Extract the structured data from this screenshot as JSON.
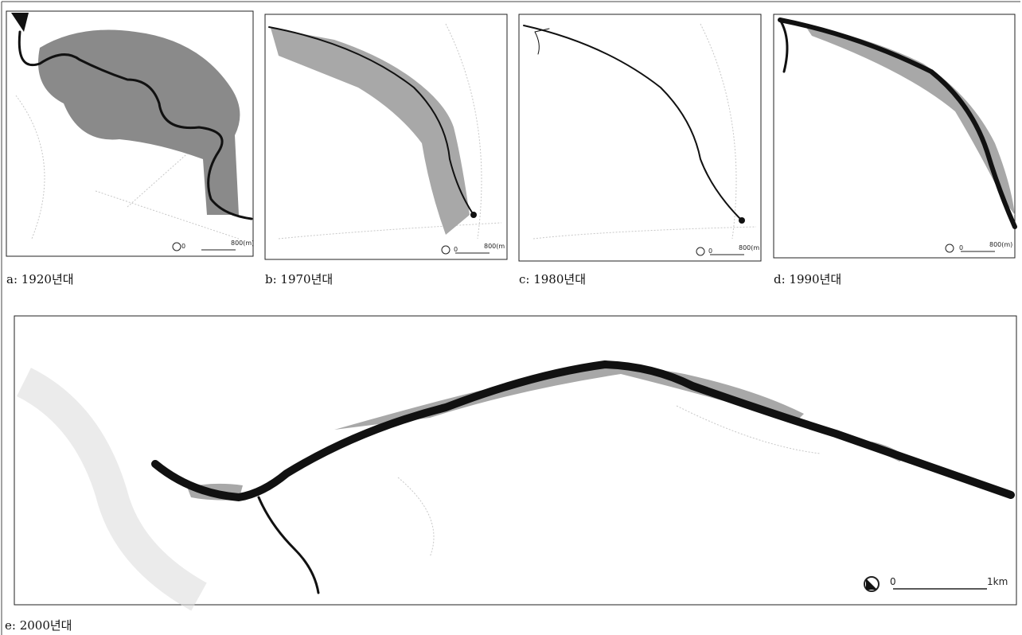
{
  "panels": [
    {
      "caption": "a: 1920년대",
      "scale_start": "0",
      "scale_end": "800(m)"
    },
    {
      "caption": "b: 1970년대",
      "scale_start": "0",
      "scale_end": "800(m"
    },
    {
      "caption": "c: 1980년대",
      "scale_start": "0",
      "scale_end": "800(m"
    },
    {
      "caption": "d: 1990년대",
      "scale_start": "0",
      "scale_end": "800(m)"
    },
    {
      "caption": "e: 2000년대",
      "scale_start": "0",
      "scale_end": "1km"
    }
  ]
}
